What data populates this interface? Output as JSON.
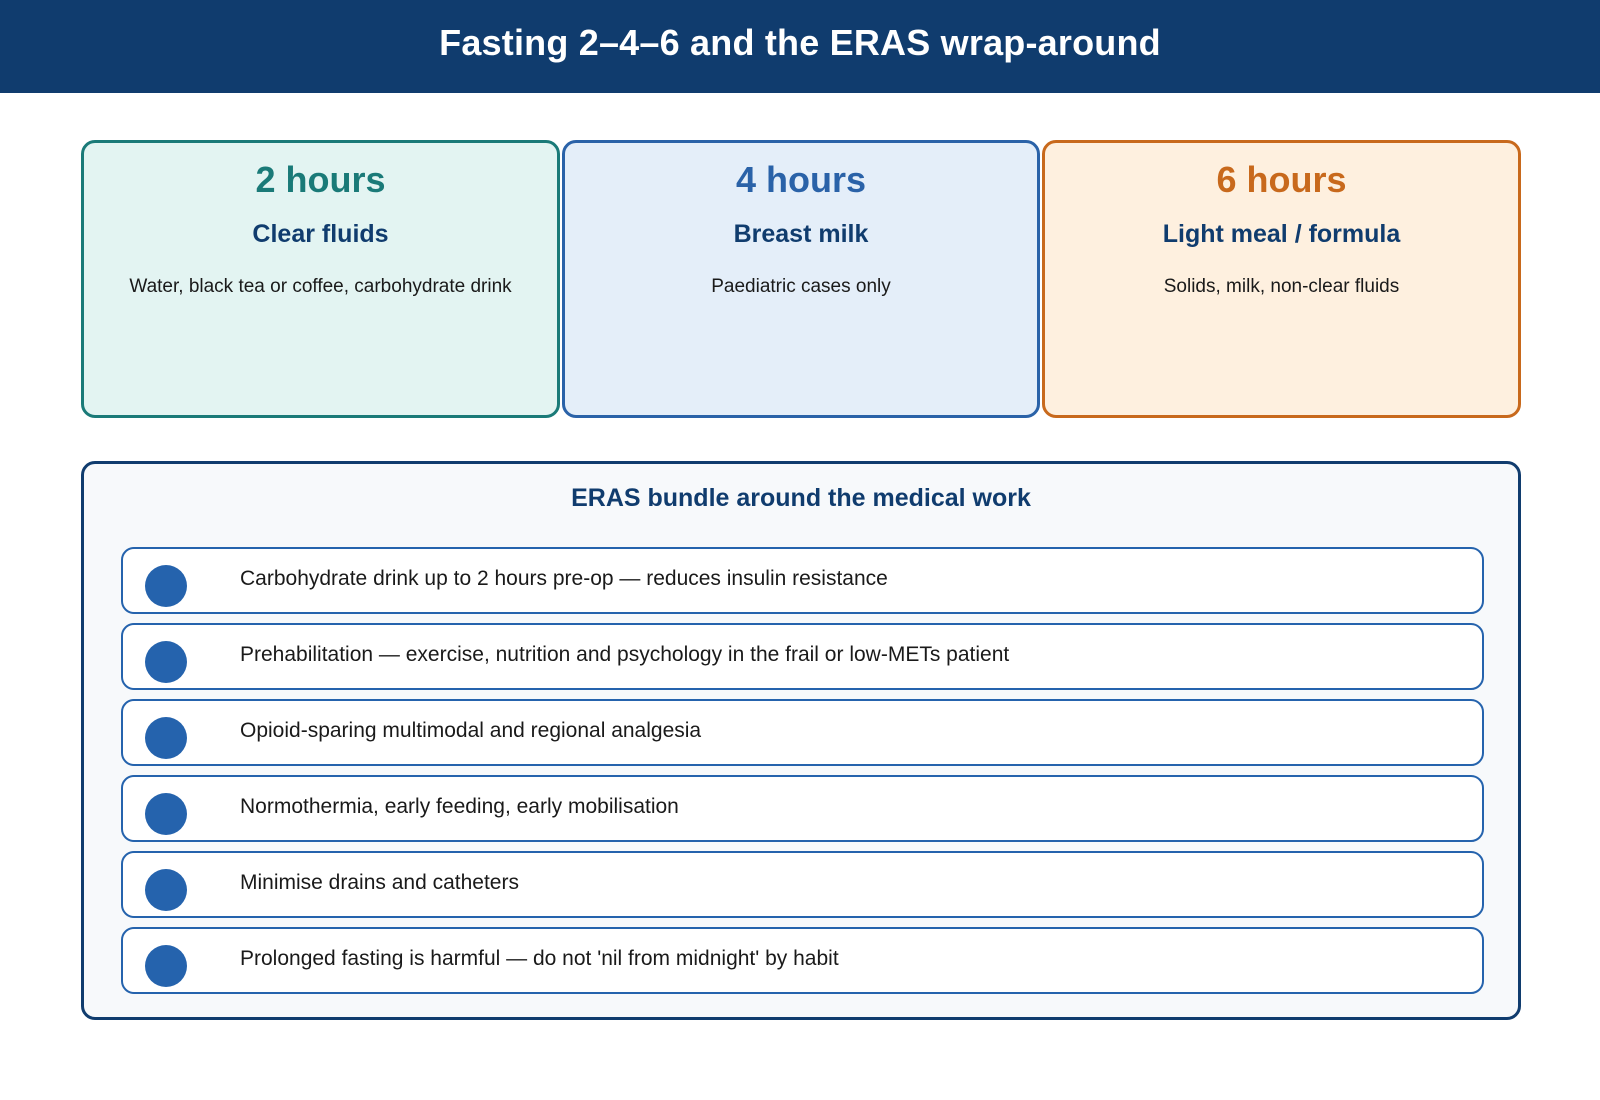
{
  "header": {
    "title": "Fasting 2–4–6 and the ERAS wrap-around",
    "background": "#103c6e"
  },
  "cards": [
    {
      "hours": "2 hours",
      "title": "Clear fluids",
      "description": "Water, black tea or coffee, carbohydrate drink",
      "accent": "#1a7a78",
      "fill": "#e3f4f2"
    },
    {
      "hours": "4 hours",
      "title": "Breast milk",
      "description": "Paediatric cases only",
      "accent": "#2a62a8",
      "fill": "#e4eef9"
    },
    {
      "hours": "6 hours",
      "title": "Light meal / formula",
      "description": "Solids, milk, non-clear fluids",
      "accent": "#c8691c",
      "fill": "#fef0df"
    }
  ],
  "bundle": {
    "title": "ERAS bundle around the medical work",
    "items": [
      "Carbohydrate drink up to 2 hours pre-op — reduces insulin resistance",
      "Prehabilitation — exercise, nutrition and psychology in the frail or low-METs patient",
      "Opioid-sparing multimodal and regional analgesia",
      "Normothermia, early feeding, early mobilisation",
      "Minimise drains and catheters",
      "Prolonged fasting is harmful — do not 'nil from midnight' by habit"
    ],
    "accent": "#2563ad",
    "border": "#103c6e"
  }
}
